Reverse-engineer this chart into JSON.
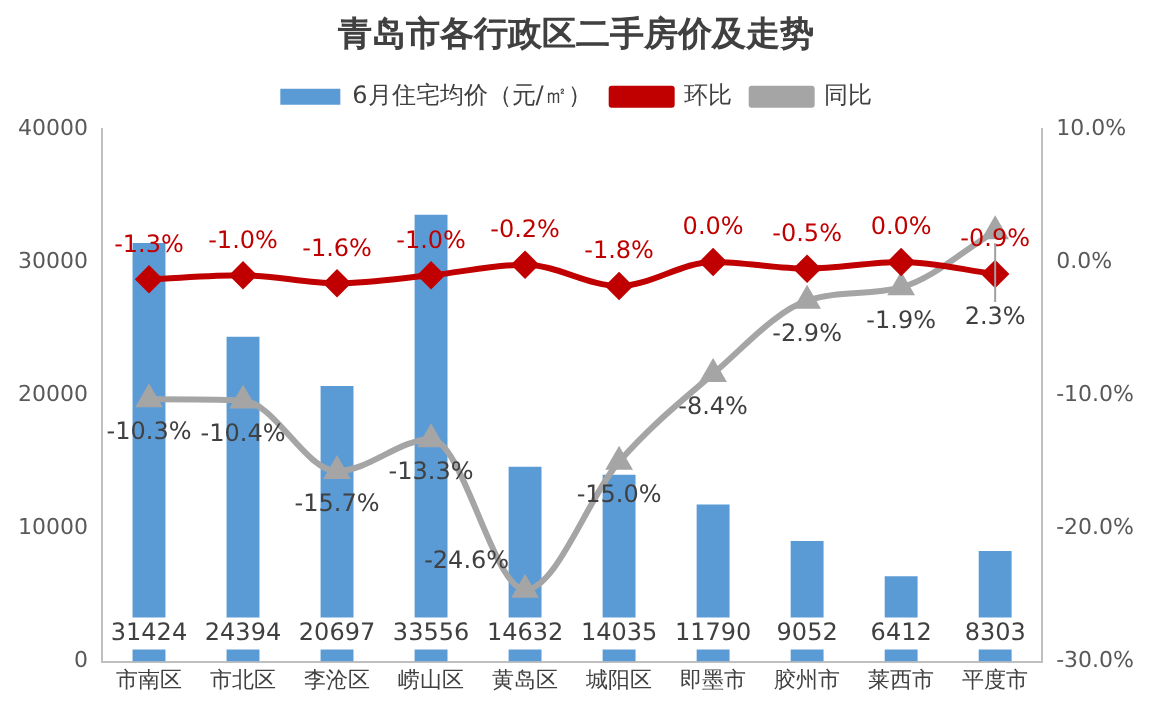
{
  "chart_data": {
    "type": "bar",
    "title": "青岛市各行政区二手房价及走势",
    "categories": [
      "市南区",
      "市北区",
      "李沧区",
      "崂山区",
      "黄岛区",
      "城阳区",
      "即墨市",
      "胶州市",
      "莱西市",
      "平度市"
    ],
    "series": [
      {
        "name": "6月住宅均价（元/㎡）",
        "color": "#5b9bd5",
        "values": [
          31424,
          24394,
          20697,
          33556,
          14632,
          14035,
          11790,
          9052,
          6412,
          8303
        ],
        "value_labels": [
          "31424",
          "24394",
          "20697",
          "33556",
          "14632",
          "14035",
          "11790",
          "9052",
          "6412",
          "8303"
        ]
      },
      {
        "name": "环比",
        "type": "line",
        "axis": "y2",
        "marker": "diamond",
        "color": "#c00000",
        "values": [
          -1.3,
          -1.0,
          -1.6,
          -1.0,
          -0.2,
          -1.8,
          0.0,
          -0.5,
          0.0,
          -0.9
        ],
        "value_labels": [
          "-1.3%",
          "-1.0%",
          "-1.6%",
          "-1.0%",
          "-0.2%",
          "-1.8%",
          "0.0%",
          "-0.5%",
          "0.0%",
          "-0.9%"
        ]
      },
      {
        "name": "同比",
        "type": "line",
        "axis": "y2",
        "marker": "triangle",
        "color": "#a5a5a5",
        "values": [
          -10.3,
          -10.4,
          -15.7,
          -13.3,
          -24.6,
          -15.0,
          -8.4,
          -2.9,
          -1.9,
          2.3
        ],
        "value_labels": [
          "-10.3%",
          "-10.4%",
          "-15.7%",
          "-13.3%",
          "-24.6%",
          "-15.0%",
          "-8.4%",
          "-2.9%",
          "-1.9%",
          "2.3%"
        ]
      }
    ],
    "ylim": [
      0,
      40000
    ],
    "yticks": [
      0,
      10000,
      20000,
      30000,
      40000
    ],
    "y2lim": [
      -30,
      10
    ],
    "y2ticks": [
      {
        "value": -30,
        "label": "-30.0%"
      },
      {
        "value": -20,
        "label": "-20.0%"
      },
      {
        "value": -10,
        "label": "-10.0%"
      },
      {
        "value": 0,
        "label": "0.0%"
      },
      {
        "value": 10,
        "label": "10.0%"
      }
    ],
    "legend": "top",
    "grid": false
  }
}
